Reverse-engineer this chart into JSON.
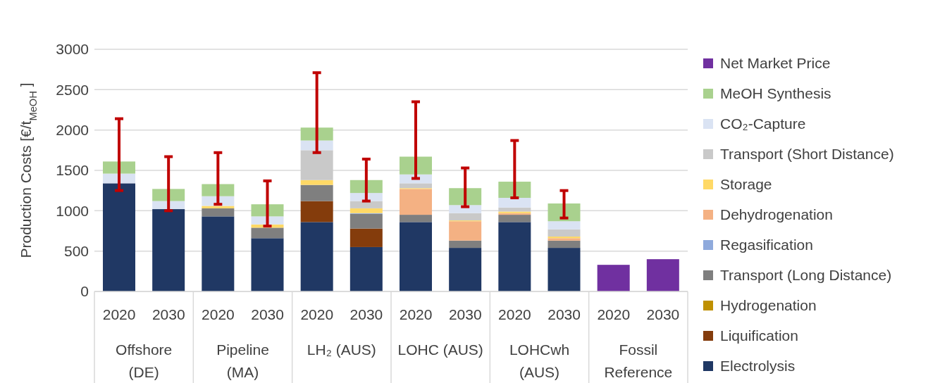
{
  "chart_data": {
    "type": "bar",
    "stacked": true,
    "ylabel": "Production Costs [€/t$_{MeOH}$]",
    "categories": [
      "2020",
      "2030",
      "2020",
      "2030",
      "2020",
      "2030",
      "2020",
      "2030",
      "2020",
      "2030",
      "2020",
      "2030"
    ],
    "annotations": [
      "Offshore (DE)",
      "Pipeline (MA)",
      "LH₂ (AUS)",
      "LOHC (AUS)",
      "LOHCwh (AUS)",
      "Fossil Reference"
    ],
    "series": [
      {
        "name": "Electrolysis",
        "color": "#203864",
        "values": [
          1340,
          1020,
          930,
          660,
          860,
          550,
          860,
          540,
          860,
          540,
          null,
          null
        ]
      },
      {
        "name": "Liquification",
        "color": "#843c0c",
        "values": [
          null,
          null,
          null,
          null,
          260,
          230,
          null,
          null,
          null,
          null,
          null,
          null
        ]
      },
      {
        "name": "Hydrogenation",
        "color": "#bf9000",
        "values": [
          null,
          null,
          null,
          null,
          null,
          null,
          null,
          null,
          null,
          null,
          null,
          null
        ]
      },
      {
        "name": "Transport (Long Distance)",
        "color": "#7f7f7f",
        "values": [
          null,
          null,
          100,
          130,
          200,
          180,
          90,
          90,
          90,
          90,
          null,
          null
        ]
      },
      {
        "name": "Regasification",
        "color": "#8faadc",
        "values": [
          null,
          null,
          null,
          null,
          null,
          10,
          null,
          null,
          null,
          null,
          null,
          null
        ]
      },
      {
        "name": "Dehydrogenation",
        "color": "#f4b183",
        "values": [
          null,
          null,
          null,
          null,
          null,
          null,
          320,
          240,
          20,
          30,
          null,
          null
        ]
      },
      {
        "name": "Storage",
        "color": "#ffd966",
        "values": [
          null,
          null,
          30,
          40,
          60,
          60,
          10,
          10,
          20,
          20,
          null,
          null
        ]
      },
      {
        "name": "Transport (Short Distance)",
        "color": "#c9c9c9",
        "values": [
          null,
          null,
          null,
          null,
          370,
          90,
          60,
          90,
          50,
          90,
          null,
          null
        ]
      },
      {
        "name": "CO₂-Capture",
        "color": "#dae3f3",
        "values": [
          120,
          100,
          120,
          100,
          120,
          100,
          110,
          100,
          120,
          100,
          null,
          null
        ]
      },
      {
        "name": "MeOH Synthesis",
        "color": "#a9d18e",
        "values": [
          150,
          150,
          150,
          150,
          160,
          160,
          220,
          210,
          200,
          220,
          null,
          null
        ],
        "errors": [
          [
            1250,
            2140
          ],
          [
            1000,
            1670
          ],
          [
            1080,
            1720
          ],
          [
            810,
            1370
          ],
          [
            1720,
            2710
          ],
          [
            1120,
            1640
          ],
          [
            1400,
            2350
          ],
          [
            1050,
            1530
          ],
          [
            1160,
            1870
          ],
          [
            910,
            1250
          ],
          null,
          null
        ]
      },
      {
        "name": "Net Market Price",
        "color": "#7030a0",
        "values": [
          null,
          null,
          null,
          null,
          null,
          null,
          null,
          null,
          null,
          null,
          330,
          400
        ]
      }
    ],
    "ylim": [
      0,
      3000
    ],
    "yticks": [
      0,
      500,
      1000,
      1500,
      2000,
      2500,
      3000
    ],
    "grid": "y",
    "legend": "right"
  }
}
